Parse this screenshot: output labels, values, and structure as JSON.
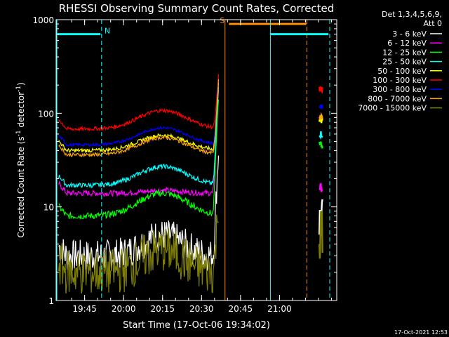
{
  "chart_data": {
    "type": "line",
    "title": "RHESSI Observing Summary Count Rates, Corrected",
    "xlabel": "Start Time (17-Oct-06 19:34:02)",
    "ylabel_main": "Corrected Count Rate (s",
    "ylabel_sup1": "-1",
    "ylabel_mid": " detector",
    "ylabel_sup2": "-1",
    "ylabel_end": ")",
    "y_scale": "log",
    "ylim": [
      1,
      1000
    ],
    "xlim_minutes": [
      0,
      108
    ],
    "x_ticks": [
      {
        "minute": 10.97,
        "label": "19:45"
      },
      {
        "minute": 25.97,
        "label": "20:00"
      },
      {
        "minute": 40.97,
        "label": "20:15"
      },
      {
        "minute": 55.97,
        "label": "20:30"
      },
      {
        "minute": 70.97,
        "label": "20:45"
      },
      {
        "minute": 85.97,
        "label": "21:00"
      }
    ],
    "y_ticks": [
      {
        "value": 1,
        "label": "1"
      },
      {
        "value": 10,
        "label": "10"
      },
      {
        "value": 100,
        "label": "100"
      },
      {
        "value": 1000,
        "label": "1000"
      }
    ],
    "legend_header": [
      "Det 1,3,4,5,6,9,",
      "Att 0"
    ],
    "legend_placement": "right",
    "series": [
      {
        "name": "3 - 6 keV",
        "color": "#ffffff",
        "shape": "dip",
        "base": 3,
        "peak": 5,
        "flare_end": 40,
        "late": 7,
        "noise": 0.35
      },
      {
        "name": "6 - 12 keV",
        "color": "#ff00ff",
        "shape": "dip",
        "base": 14,
        "peak": 15,
        "flare_end": 180,
        "late": 16,
        "noise": 0.06
      },
      {
        "name": "12 - 25 keV",
        "color": "#00ff00",
        "shape": "arch",
        "base": 8,
        "peak": 14,
        "flare_end": 150,
        "late": 45,
        "noise": 0.07
      },
      {
        "name": "25 - 50 keV",
        "color": "#00ffff",
        "shape": "arch",
        "base": 17,
        "peak": 27,
        "flare_end": 200,
        "late": 60,
        "noise": 0.05
      },
      {
        "name": "50 - 100 keV",
        "color": "#ffff00",
        "shape": "arch",
        "base": 40,
        "peak": 58,
        "flare_end": 220,
        "late": 82,
        "noise": 0.04
      },
      {
        "name": "100 - 300 keV",
        "color": "#ff0000",
        "shape": "arch",
        "base": 68,
        "peak": 107,
        "flare_end": 260,
        "late": 180,
        "noise": 0.04
      },
      {
        "name": "300 - 800 keV",
        "color": "#0000ff",
        "shape": "arch",
        "base": 46,
        "peak": 70,
        "flare_end": 240,
        "late": 118,
        "noise": 0.03
      },
      {
        "name": "800 - 7000 keV",
        "color": "#ffa500",
        "shape": "arch",
        "base": 36,
        "peak": 55,
        "flare_end": 230,
        "late": 90,
        "noise": 0.04
      },
      {
        "name": "7000 - 15000 keV",
        "color": "#808000",
        "shape": "dip",
        "base": 2,
        "peak": 3.5,
        "flare_end": 12,
        "late": 4.5,
        "noise": 0.5
      }
    ],
    "annotations": [
      {
        "label": "N",
        "color": "#00ffff",
        "bar_start": 0.5,
        "bar_end": 17,
        "bar_value": 700,
        "dashed_at": 17.5
      },
      {
        "label": "S",
        "color": "#ff8c00",
        "bar_start": 66.5,
        "bar_end": 96.3,
        "bar_value": 900,
        "solid_at": 65,
        "dashed_at": 96.5
      },
      {
        "label": "",
        "color": "#00ffff",
        "bar_start": 82.5,
        "bar_end": 104.8,
        "bar_value": 700,
        "solid_at": 82.5,
        "dashed_at": 105.3
      }
    ],
    "gap_minutes": [
      62.5,
      101.3
    ],
    "timestamp": "17-Oct-2021 12:53"
  }
}
